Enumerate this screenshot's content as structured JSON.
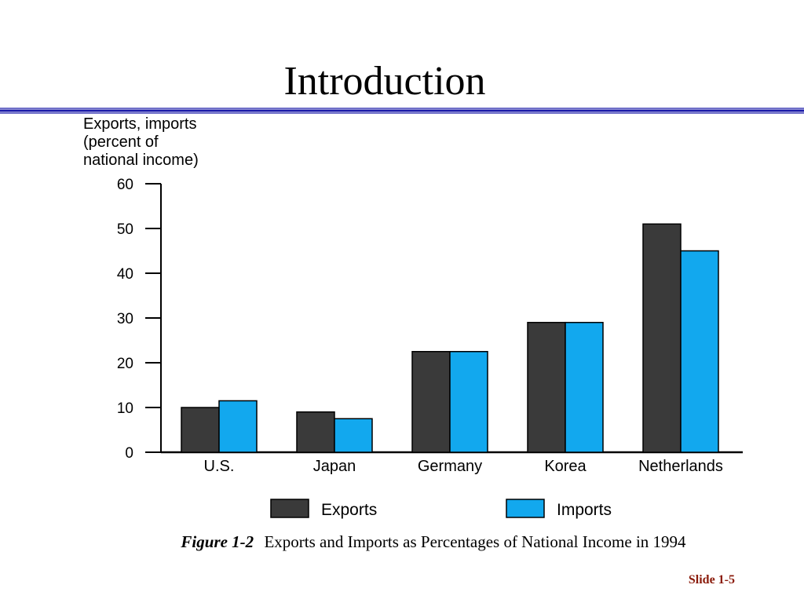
{
  "slide": {
    "title": "Introduction",
    "caption_figure": "Figure 1-2",
    "caption_text": "Exports and Imports as Percentages of National Income in 1994",
    "slide_number": "Slide 1-5"
  },
  "colors": {
    "rule": "#1a1aa8",
    "exports": "#3a3a3a",
    "imports": "#12a8ee",
    "slide_number": "#8a1a0a"
  },
  "chart_data": {
    "type": "bar",
    "title": "",
    "ylabel_lines": [
      "Exports, imports",
      "(percent of",
      "national income)"
    ],
    "xlabel": "",
    "ylim": [
      0,
      60
    ],
    "yticks": [
      0,
      10,
      20,
      30,
      40,
      50,
      60
    ],
    "categories": [
      "U.S.",
      "Japan",
      "Germany",
      "Korea",
      "Netherlands"
    ],
    "series": [
      {
        "name": "Exports",
        "values": [
          10,
          9,
          22.5,
          29,
          51
        ]
      },
      {
        "name": "Imports",
        "values": [
          11.5,
          7.5,
          22.5,
          29,
          45
        ]
      }
    ],
    "grid": false,
    "legend_position": "bottom"
  }
}
